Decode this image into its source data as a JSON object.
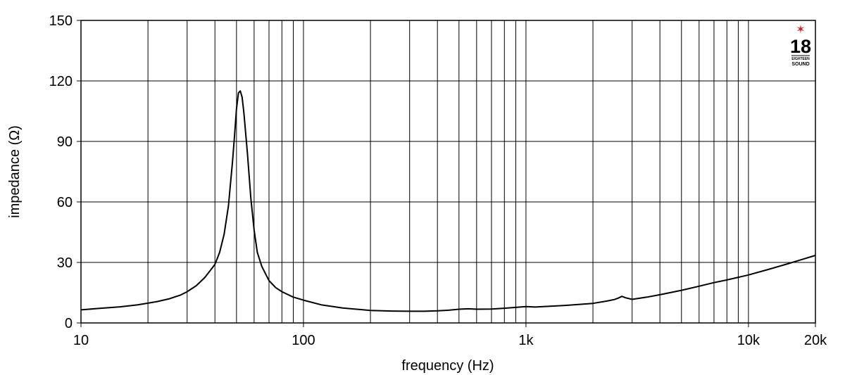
{
  "chart_data": {
    "type": "line",
    "xlabel": "frequency (Hz)",
    "ylabel": "impedance (Ω)",
    "x_scale": "log",
    "xlim": [
      10,
      20000
    ],
    "ylim": [
      0,
      150
    ],
    "grid": true,
    "x_tick_labels": [
      {
        "value": 10,
        "label": "10"
      },
      {
        "value": 100,
        "label": "100"
      },
      {
        "value": 1000,
        "label": "1k"
      },
      {
        "value": 10000,
        "label": "10k"
      },
      {
        "value": 20000,
        "label": "20k"
      }
    ],
    "y_ticks": [
      0,
      30,
      60,
      90,
      120,
      150
    ],
    "series": [
      {
        "x": [
          10,
          12,
          15,
          18,
          20,
          22,
          25,
          28,
          30,
          33,
          36,
          40,
          42,
          44,
          46,
          48,
          49,
          50,
          51,
          52,
          53,
          54,
          56,
          58,
          60,
          62,
          65,
          70,
          75,
          80,
          90,
          100,
          120,
          150,
          200,
          250,
          300,
          350,
          400,
          450,
          500,
          550,
          600,
          700,
          800,
          900,
          1000,
          1100,
          1200,
          1500,
          2000,
          2300,
          2500,
          2600,
          2700,
          2800,
          3000,
          3500,
          4000,
          5000,
          6000,
          7000,
          8000,
          10000,
          12000,
          15000,
          20000
        ],
        "y": [
          6.5,
          7.2,
          8.0,
          9.0,
          9.8,
          10.6,
          12.0,
          13.8,
          15.5,
          18.5,
          22.5,
          29,
          35,
          44,
          58,
          80,
          93,
          106,
          114,
          115,
          112,
          104,
          84,
          62,
          46,
          35,
          28,
          21,
          17.5,
          15.5,
          12.8,
          11.3,
          9.0,
          7.4,
          6.2,
          5.9,
          5.8,
          5.8,
          6.0,
          6.3,
          6.8,
          7.0,
          6.8,
          6.9,
          7.3,
          7.7,
          8.1,
          7.9,
          8.1,
          8.7,
          9.7,
          10.8,
          11.6,
          12.3,
          13.2,
          12.5,
          11.7,
          12.8,
          14.0,
          16.2,
          18.2,
          20.0,
          21.3,
          23.8,
          26.2,
          29.3,
          33.5
        ]
      }
    ]
  },
  "logo": {
    "number": "18",
    "line1": "EIGHTEEN",
    "line2": "SOUND",
    "star": "✶",
    "star_color": "#d32027"
  }
}
